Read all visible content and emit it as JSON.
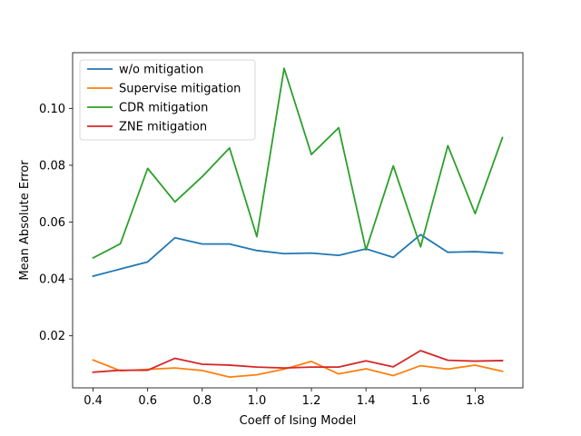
{
  "chart_data": {
    "type": "line",
    "xlabel": "Coeff of Ising Model",
    "ylabel": "Mean Absolute Error",
    "xlim": [
      0.325,
      1.975
    ],
    "ylim": [
      0.0017,
      0.1196
    ],
    "xticks": [
      0.4,
      0.6,
      0.8,
      1.0,
      1.2,
      1.4,
      1.6,
      1.8
    ],
    "xtick_labels": [
      "0.4",
      "0.6",
      "0.8",
      "1.0",
      "1.2",
      "1.4",
      "1.6",
      "1.8"
    ],
    "yticks": [
      0.02,
      0.04,
      0.06,
      0.08,
      0.1
    ],
    "ytick_labels": [
      "0.02",
      "0.04",
      "0.06",
      "0.08",
      "0.10"
    ],
    "grid": false,
    "legend_position": "upper-left",
    "x": [
      0.4,
      0.5,
      0.6,
      0.7,
      0.8,
      0.9,
      1.0,
      1.1,
      1.2,
      1.3,
      1.4,
      1.5,
      1.6,
      1.7,
      1.8,
      1.9
    ],
    "series": [
      {
        "name": "w/o mitigation",
        "color": "#1f77b4",
        "values": [
          0.041,
          0.0435,
          0.046,
          0.0545,
          0.0523,
          0.0523,
          0.05,
          0.0489,
          0.0491,
          0.0483,
          0.0506,
          0.0476,
          0.0556,
          0.0494,
          0.0496,
          0.0491
        ]
      },
      {
        "name": "Supervise mitigation",
        "color": "#ff7f0e",
        "values": [
          0.0115,
          0.0077,
          0.0082,
          0.0087,
          0.0078,
          0.0055,
          0.0063,
          0.0083,
          0.011,
          0.0066,
          0.0084,
          0.006,
          0.0095,
          0.0083,
          0.0097,
          0.0075
        ]
      },
      {
        "name": "CDR mitigation",
        "color": "#2ca02c",
        "values": [
          0.0474,
          0.0524,
          0.0789,
          0.0671,
          0.076,
          0.0861,
          0.0549,
          0.1141,
          0.0838,
          0.0932,
          0.0502,
          0.0798,
          0.0513,
          0.0869,
          0.063,
          0.0897
        ]
      },
      {
        "name": "ZNE mitigation",
        "color": "#d62728",
        "values": [
          0.0072,
          0.0079,
          0.0079,
          0.0121,
          0.01,
          0.0097,
          0.009,
          0.0087,
          0.009,
          0.009,
          0.0112,
          0.0091,
          0.0148,
          0.0114,
          0.0111,
          0.0113
        ]
      }
    ]
  }
}
